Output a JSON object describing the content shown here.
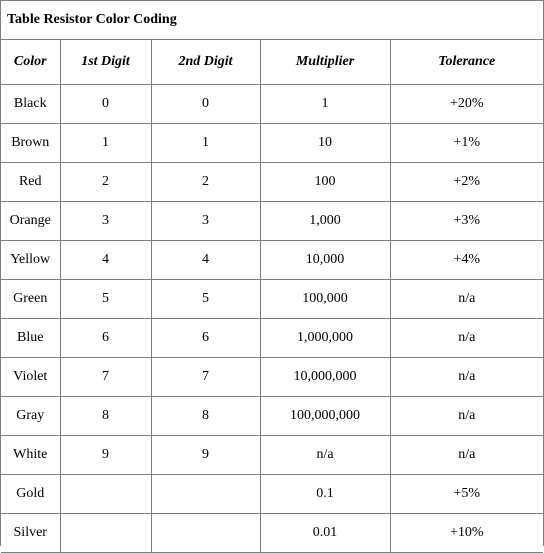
{
  "title": "Table Resistor Color Coding",
  "headers": [
    "Color",
    "1st Digit",
    "2nd Digit",
    "Multiplier",
    "Tolerance"
  ],
  "rows": [
    [
      "Black",
      "0",
      "0",
      "1",
      "+20%"
    ],
    [
      "Brown",
      "1",
      "1",
      "10",
      "+1%"
    ],
    [
      "Red",
      "2",
      "2",
      "100",
      "+2%"
    ],
    [
      "Orange",
      "3",
      "3",
      "1,000",
      "+3%"
    ],
    [
      "Yellow",
      "4",
      "4",
      "10,000",
      "+4%"
    ],
    [
      "Green",
      "5",
      "5",
      "100,000",
      "n/a"
    ],
    [
      "Blue",
      "6",
      "6",
      "1,000,000",
      "n/a"
    ],
    [
      "Violet",
      "7",
      "7",
      "10,000,000",
      "n/a"
    ],
    [
      "Gray",
      "8",
      "8",
      "100,000,000",
      "n/a"
    ],
    [
      "White",
      "9",
      "9",
      "n/a",
      "n/a"
    ],
    [
      "Gold",
      "",
      "",
      "0.1",
      "+5%"
    ],
    [
      "Silver",
      "",
      "",
      "0.01",
      "+10%"
    ]
  ]
}
